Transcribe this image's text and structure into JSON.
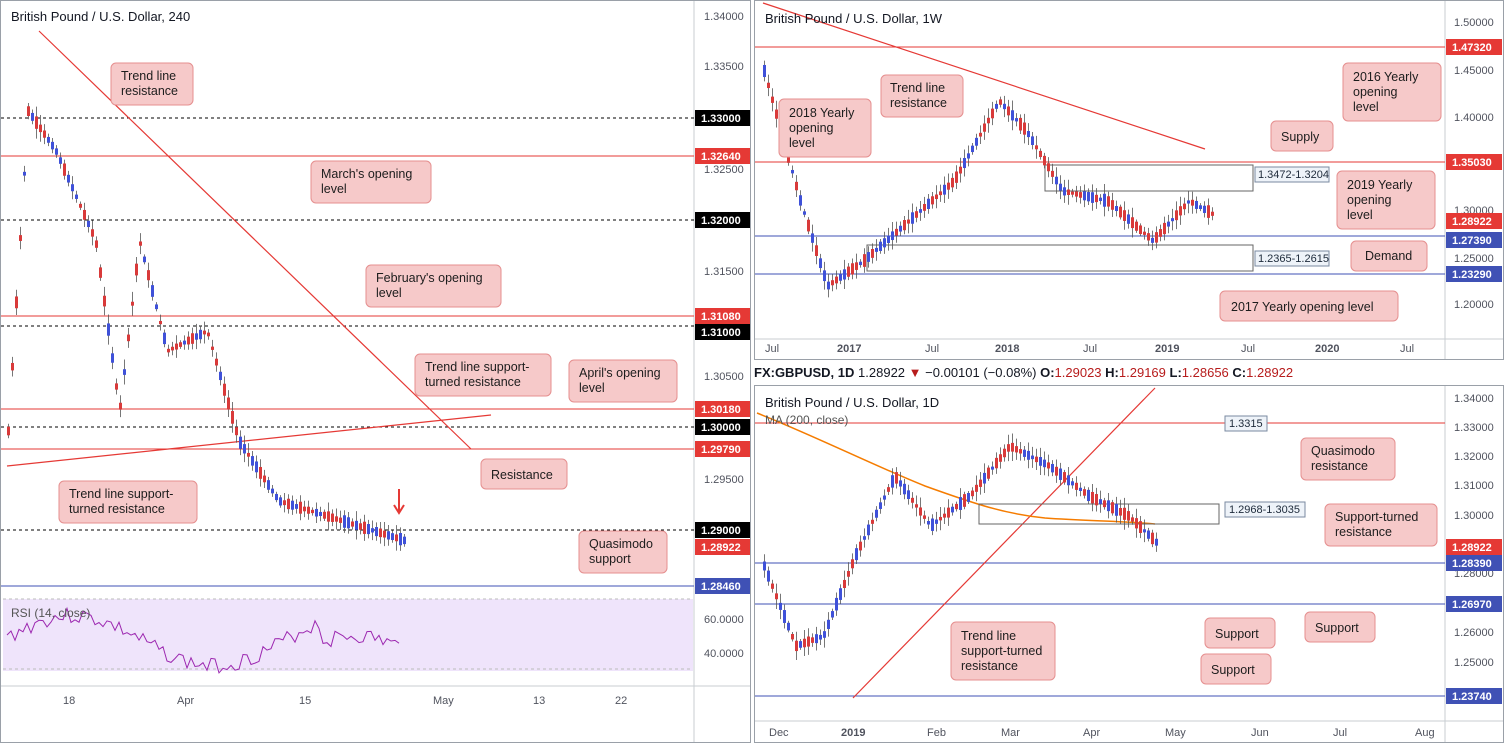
{
  "colors": {
    "bull": "#3f51d9",
    "bear": "#d93a3a",
    "red_line": "#e53935",
    "blue_line": "#3f51b5",
    "black_line": "#000000",
    "note_fill": "#f6c9c9",
    "note_stroke": "#e58f8f",
    "rsi_fill": "#efe4fb",
    "rsi_line": "#9c27b0",
    "ma_line": "#f57c00"
  },
  "panel_4h": {
    "title": "British Pound / U.S. Dollar, 240",
    "price_ticks": [
      "1.34000",
      "1.33500",
      "1.32500",
      "1.31500",
      "1.30500",
      "1.29500"
    ],
    "time_ticks": [
      "18",
      "Apr",
      "15",
      "May",
      "13",
      "22"
    ],
    "rsi_label": "RSI (14, close)",
    "rsi_ticks": [
      "60.0000",
      "40.0000"
    ],
    "notes": {
      "trend_resistance": [
        "Trend line",
        "resistance"
      ],
      "march_open": [
        "March's opening",
        "level"
      ],
      "feb_open": [
        "February's opening",
        "level"
      ],
      "tl_support_turned_1": [
        "Trend line support-",
        "turned resistance"
      ],
      "april_open": [
        "April's opening",
        "level"
      ],
      "resistance": [
        "Resistance"
      ],
      "tl_support_turned_2": [
        "Trend line support-",
        "turned resistance"
      ],
      "qm_support": [
        "Quasimodo",
        "support"
      ]
    },
    "levels": {
      "l13300": "1.33000",
      "l13264": "1.32640",
      "l13200": "1.32000",
      "l13108": "1.31080",
      "l13100": "1.31000",
      "l13018": "1.30180",
      "l13000": "1.30000",
      "l12979": "1.29790",
      "l12900": "1.29000",
      "l12892": "1.28922",
      "l12846": "1.28460"
    }
  },
  "panel_1w": {
    "title": "British Pound / U.S. Dollar, 1W",
    "price_ticks": [
      "1.50000",
      "1.45000",
      "1.40000",
      "1.30000",
      "1.25000",
      "1.20000"
    ],
    "time_ticks": [
      "Jul",
      "2017",
      "Jul",
      "2018",
      "Jul",
      "2019",
      "Jul",
      "2020",
      "Jul"
    ],
    "notes": {
      "trend_resistance": [
        "Trend line",
        "resistance"
      ],
      "y2018_open": [
        "2018 Yearly",
        "opening",
        "level"
      ],
      "y2016_open": [
        "2016 Yearly",
        "opening",
        "level"
      ],
      "supply": [
        "Supply"
      ],
      "y2019_open": [
        "2019 Yearly",
        "opening",
        "level"
      ],
      "demand": [
        "Demand"
      ],
      "y2017_open": [
        "2017 Yearly opening level"
      ]
    },
    "zones": {
      "supply": "1.3472-1.3204",
      "demand": "1.2365-1.2615"
    },
    "levels": {
      "l14732": "1.47320",
      "l13503": "1.35030",
      "l12892": "1.28922",
      "l12739": "1.27390",
      "l12329": "1.23290"
    }
  },
  "panel_1d": {
    "header": {
      "symbol": "FX:GBPUSD, 1D",
      "last": "1.28922",
      "change": "−0.00101 (−0.08%)",
      "o_label": "O:",
      "o": "1.29023",
      "h_label": "H:",
      "h": "1.29169",
      "l_label": "L:",
      "l": "1.28656",
      "c_label": "C:",
      "c": "1.28922"
    },
    "title": "British Pound / U.S. Dollar, 1D",
    "ma_label": "MA (200, close)",
    "price_ticks": [
      "1.34000",
      "1.33000",
      "1.32000",
      "1.31000",
      "1.30000",
      "1.28000",
      "1.26000",
      "1.25000"
    ],
    "time_ticks": [
      "Dec",
      "2019",
      "Feb",
      "Mar",
      "Apr",
      "May",
      "Jun",
      "Jul",
      "Aug"
    ],
    "notes": {
      "qm_resistance": [
        "Quasimodo",
        "resistance"
      ],
      "support_turned": [
        "Support-turned",
        "resistance"
      ],
      "support_a": [
        "Support"
      ],
      "support_b": [
        "Support"
      ],
      "support_c": [
        "Support"
      ],
      "tl_support_turned": [
        "Trend line",
        "support-turned",
        "resistance"
      ]
    },
    "zones": {
      "zone": "1.2968-1.3035",
      "qm": "1.3315"
    },
    "levels": {
      "l12892": "1.28922",
      "l12839": "1.28390",
      "l12697": "1.26970",
      "l12374": "1.23740"
    }
  }
}
